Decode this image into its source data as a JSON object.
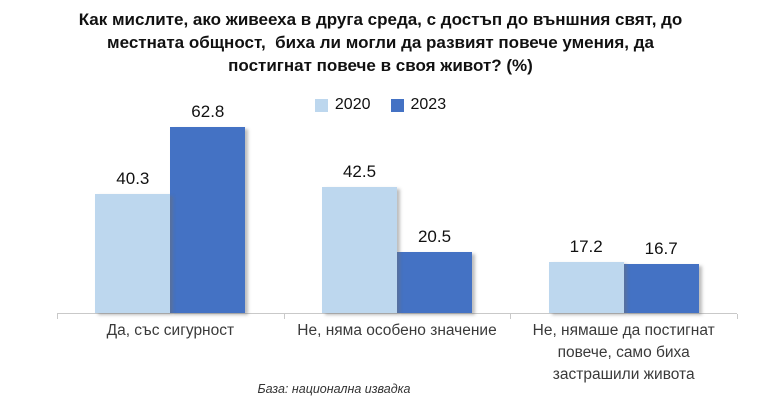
{
  "title": "Как мислите, ако живееха в друга среда, с достъп до външния свят, до\nместната общност,  биха ли могли да развият повече умения, да\nпостигнат повече в своя живот? (%)",
  "footnote": "База: национална извадка",
  "colors": {
    "series_2020": "#BDD7EE",
    "series_2023": "#4472C4",
    "axis": "#C9C9C9"
  },
  "chart_data": {
    "type": "bar",
    "title": "Как мислите, ако живееха в друга среда, с достъп до външния свят, до местната общност, биха ли могли да развият повече умения, да постигнат повече в своя живот? (%)",
    "categories": [
      "Да, със сигурност",
      "Не, няма особено значение",
      "Не, нямаше да постигнат повече, само биха застрашили живота"
    ],
    "categories_wrapped": [
      "Да, със сигурност",
      "Не, няма особено значение",
      "Не, нямаше да постигнат\nповече, само биха\nзастрашили живота"
    ],
    "series": [
      {
        "name": "2020",
        "color": "#BDD7EE",
        "values": [
          40.3,
          42.5,
          17.2
        ]
      },
      {
        "name": "2023",
        "color": "#4472C4",
        "values": [
          62.8,
          20.5,
          16.7
        ]
      }
    ],
    "value_labels": true,
    "legend_position": "top",
    "xlabel": "",
    "ylabel": "",
    "ylim": [
      0,
      70
    ],
    "grid": false,
    "source_note": "База: национална извадка"
  }
}
